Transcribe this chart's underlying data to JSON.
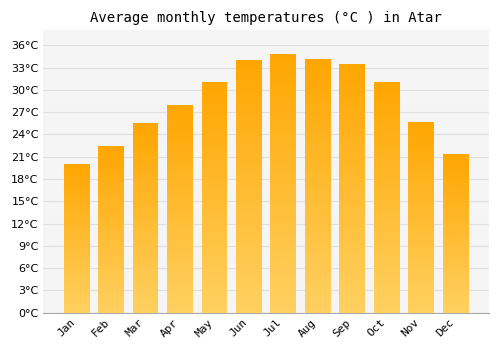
{
  "title": "Average monthly temperatures (°C ) in Atar",
  "months": [
    "Jan",
    "Feb",
    "Mar",
    "Apr",
    "May",
    "Jun",
    "Jul",
    "Aug",
    "Sep",
    "Oct",
    "Nov",
    "Dec"
  ],
  "values": [
    20,
    22.5,
    25.5,
    28,
    31,
    34,
    34.8,
    34.2,
    33.5,
    31,
    25.7,
    21.3
  ],
  "bar_color_top": "#FFA500",
  "bar_color_bottom": "#FFD060",
  "background_color": "#FFFFFF",
  "plot_bg_color": "#F5F5F5",
  "grid_color": "#E0E0E0",
  "ylim": [
    0,
    38
  ],
  "yticks": [
    0,
    3,
    6,
    9,
    12,
    15,
    18,
    21,
    24,
    27,
    30,
    33,
    36
  ],
  "title_fontsize": 10,
  "tick_fontsize": 8,
  "bar_width": 0.75
}
